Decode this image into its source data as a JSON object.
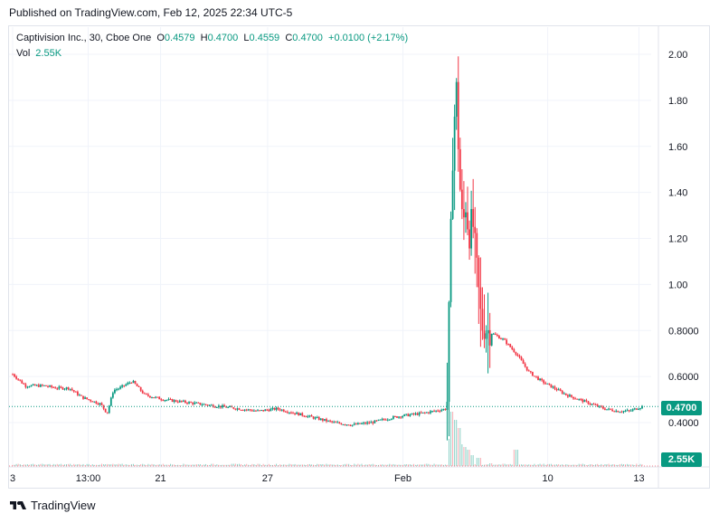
{
  "header": {
    "published": "Published on TradingView.com, Feb 12, 2025 22:34 UTC-5"
  },
  "legend": {
    "symbol": "Captivision Inc., 30, Cboe One",
    "o_label": "O",
    "o": "0.4579",
    "h_label": "H",
    "h": "0.4700",
    "l_label": "L",
    "l": "0.4559",
    "c_label": "C",
    "c": "0.4700",
    "change": "+0.0100 (+2.17%)",
    "vol_label": "Vol",
    "vol": "2.55K"
  },
  "badges": {
    "price": "0.4700",
    "volume": "2.55K"
  },
  "footer": {
    "brand": "TradingView"
  },
  "colors": {
    "up": "#089981",
    "down": "#f23645",
    "grid": "#f0f3fa",
    "axis_text": "#131722"
  },
  "chart_data": {
    "type": "candlestick",
    "interval": "30",
    "y_ticks": [
      "2.00",
      "1.80",
      "1.60",
      "1.40",
      "1.20",
      "1.00",
      "0.8000",
      "0.6000",
      "0.4000"
    ],
    "ylim": [
      0.3,
      2.1
    ],
    "x_ticks": [
      "3",
      "13:00",
      "21",
      "27",
      "Feb",
      "10",
      "13"
    ],
    "last_price": 0.47,
    "price_path": [
      [
        0.0,
        0.61
      ],
      [
        0.02,
        0.56
      ],
      [
        0.05,
        0.56
      ],
      [
        0.07,
        0.55
      ],
      [
        0.09,
        0.55
      ],
      [
        0.11,
        0.51
      ],
      [
        0.14,
        0.48
      ],
      [
        0.15,
        0.44
      ],
      [
        0.16,
        0.54
      ],
      [
        0.17,
        0.55
      ],
      [
        0.19,
        0.58
      ],
      [
        0.21,
        0.52
      ],
      [
        0.24,
        0.5
      ],
      [
        0.27,
        0.49
      ],
      [
        0.3,
        0.48
      ],
      [
        0.33,
        0.47
      ],
      [
        0.36,
        0.46
      ],
      [
        0.39,
        0.45
      ],
      [
        0.42,
        0.46
      ],
      [
        0.45,
        0.44
      ],
      [
        0.48,
        0.42
      ],
      [
        0.51,
        0.4
      ],
      [
        0.54,
        0.39
      ],
      [
        0.57,
        0.4
      ],
      [
        0.6,
        0.42
      ],
      [
        0.62,
        0.43
      ],
      [
        0.65,
        0.44
      ],
      [
        0.67,
        0.45
      ],
      [
        0.69,
        0.46
      ],
      [
        0.695,
        1.1
      ],
      [
        0.7,
        1.65
      ],
      [
        0.705,
        1.85
      ],
      [
        0.71,
        1.45
      ],
      [
        0.715,
        1.25
      ],
      [
        0.72,
        1.35
      ],
      [
        0.725,
        1.2
      ],
      [
        0.73,
        1.3
      ],
      [
        0.735,
        1.15
      ],
      [
        0.74,
        0.98
      ],
      [
        0.745,
        0.82
      ],
      [
        0.76,
        0.79
      ],
      [
        0.78,
        0.76
      ],
      [
        0.8,
        0.7
      ],
      [
        0.82,
        0.62
      ],
      [
        0.84,
        0.58
      ],
      [
        0.86,
        0.55
      ],
      [
        0.88,
        0.52
      ],
      [
        0.9,
        0.5
      ],
      [
        0.92,
        0.48
      ],
      [
        0.94,
        0.46
      ],
      [
        0.96,
        0.45
      ],
      [
        0.98,
        0.45
      ],
      [
        1.0,
        0.47
      ]
    ],
    "volume_spikes": [
      [
        0.695,
        0.5
      ],
      [
        0.7,
        1.0
      ],
      [
        0.705,
        0.85
      ],
      [
        0.71,
        0.7
      ],
      [
        0.715,
        0.4
      ],
      [
        0.72,
        0.35
      ],
      [
        0.725,
        0.3
      ],
      [
        0.73,
        0.2
      ],
      [
        0.74,
        0.15
      ],
      [
        0.8,
        0.3
      ],
      [
        0.76,
        0.05
      ]
    ]
  }
}
